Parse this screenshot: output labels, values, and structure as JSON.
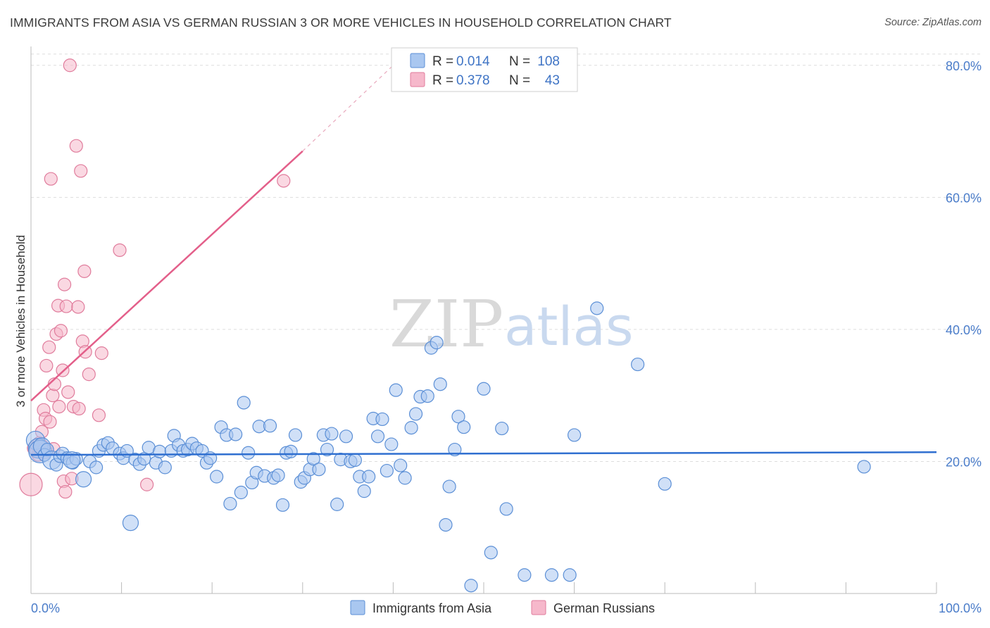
{
  "header": {
    "title": "IMMIGRANTS FROM ASIA VS GERMAN RUSSIAN 3 OR MORE VEHICLES IN HOUSEHOLD CORRELATION CHART",
    "source": "Source: ZipAtlas.com"
  },
  "legend": {
    "rows": [
      {
        "r_label": "R =",
        "r_value": "0.014",
        "n_label": "N =",
        "n_value": "108",
        "color": "#a9c7f0"
      },
      {
        "r_label": "R =",
        "r_value": "0.378",
        "n_label": "N =",
        "n_value": "43",
        "color": "#f6b8cb"
      }
    ]
  },
  "watermark": {
    "zip": "ZIP",
    "atlas": "atlas"
  },
  "colors": {
    "blue_fill": "#a9c7f0",
    "blue_stroke": "#5b8fd6",
    "blue_line": "#2f6fd0",
    "pink_fill": "#f6b8cb",
    "pink_stroke": "#e07c9c",
    "pink_line": "#e35f8a",
    "grid": "#dddddd",
    "axis": "#bbbbbb"
  },
  "chart_data": {
    "type": "scatter",
    "title": "IMMIGRANTS FROM ASIA VS GERMAN RUSSIAN 3 OR MORE VEHICLES IN HOUSEHOLD CORRELATION CHART",
    "xlabel": "",
    "ylabel": "3 or more Vehicles in Household",
    "xlim": [
      0,
      100
    ],
    "ylim": [
      0,
      82
    ],
    "x_tick_labels": [
      "0.0%",
      "100.0%"
    ],
    "y_ticks": [
      20,
      40,
      60,
      80
    ],
    "y_tick_labels": [
      "20.0%",
      "40.0%",
      "60.0%",
      "80.0%"
    ],
    "grid": true,
    "series": [
      {
        "name": "Immigrants from Asia",
        "r": 0.014,
        "n": 108,
        "trend": {
          "x0": 0,
          "y0": 21.0,
          "x1": 100,
          "y1": 21.4
        },
        "points": [
          [
            0.5,
            23.2
          ],
          [
            0.8,
            22.0
          ],
          [
            1.0,
            21.5
          ],
          [
            1.2,
            22.3
          ],
          [
            1.5,
            21.0
          ],
          [
            1.8,
            21.8
          ],
          [
            2.3,
            20.2
          ],
          [
            2.8,
            19.5
          ],
          [
            3.2,
            20.8
          ],
          [
            3.5,
            21.2
          ],
          [
            4.0,
            20.5
          ],
          [
            4.6,
            19.8
          ],
          [
            5.0,
            20.4
          ],
          [
            5.8,
            17.3
          ],
          [
            6.5,
            20.0
          ],
          [
            7.2,
            19.1
          ],
          [
            7.5,
            21.6
          ],
          [
            8.0,
            22.5
          ],
          [
            8.5,
            22.8
          ],
          [
            9.0,
            22.0
          ],
          [
            9.8,
            21.2
          ],
          [
            10.2,
            20.5
          ],
          [
            10.6,
            21.6
          ],
          [
            11.0,
            10.7
          ],
          [
            11.5,
            20.3
          ],
          [
            12.0,
            19.6
          ],
          [
            12.5,
            20.4
          ],
          [
            13.0,
            22.1
          ],
          [
            13.8,
            19.8
          ],
          [
            14.2,
            21.5
          ],
          [
            14.8,
            19.1
          ],
          [
            15.5,
            21.6
          ],
          [
            15.8,
            23.9
          ],
          [
            16.3,
            22.5
          ],
          [
            16.8,
            21.6
          ],
          [
            17.3,
            21.8
          ],
          [
            17.8,
            22.7
          ],
          [
            18.3,
            22.0
          ],
          [
            18.9,
            21.6
          ],
          [
            19.4,
            19.8
          ],
          [
            19.8,
            20.5
          ],
          [
            20.5,
            17.7
          ],
          [
            21.0,
            25.2
          ],
          [
            21.6,
            24.0
          ],
          [
            22.0,
            13.6
          ],
          [
            22.6,
            24.1
          ],
          [
            23.2,
            15.3
          ],
          [
            23.5,
            28.9
          ],
          [
            24.0,
            21.3
          ],
          [
            24.4,
            16.8
          ],
          [
            24.9,
            18.3
          ],
          [
            25.2,
            25.3
          ],
          [
            25.8,
            17.8
          ],
          [
            26.4,
            25.4
          ],
          [
            26.8,
            17.5
          ],
          [
            27.3,
            17.9
          ],
          [
            27.8,
            13.4
          ],
          [
            28.2,
            21.3
          ],
          [
            28.7,
            21.5
          ],
          [
            29.2,
            24.0
          ],
          [
            29.8,
            16.9
          ],
          [
            30.2,
            17.5
          ],
          [
            30.8,
            18.8
          ],
          [
            31.2,
            20.4
          ],
          [
            31.8,
            18.8
          ],
          [
            32.3,
            24.0
          ],
          [
            32.7,
            21.8
          ],
          [
            33.2,
            24.2
          ],
          [
            33.8,
            13.5
          ],
          [
            34.2,
            20.3
          ],
          [
            34.8,
            23.8
          ],
          [
            35.3,
            20.0
          ],
          [
            35.8,
            20.2
          ],
          [
            36.3,
            17.7
          ],
          [
            36.8,
            15.5
          ],
          [
            37.3,
            17.7
          ],
          [
            37.8,
            26.5
          ],
          [
            38.3,
            23.8
          ],
          [
            38.8,
            26.4
          ],
          [
            39.3,
            18.6
          ],
          [
            39.8,
            22.6
          ],
          [
            40.3,
            30.8
          ],
          [
            40.8,
            19.4
          ],
          [
            41.3,
            17.5
          ],
          [
            42.0,
            25.1
          ],
          [
            42.5,
            27.2
          ],
          [
            43.0,
            29.8
          ],
          [
            43.8,
            29.9
          ],
          [
            44.2,
            37.2
          ],
          [
            44.8,
            38.0
          ],
          [
            45.2,
            31.7
          ],
          [
            45.8,
            10.4
          ],
          [
            46.2,
            16.2
          ],
          [
            46.8,
            21.8
          ],
          [
            47.2,
            26.8
          ],
          [
            47.8,
            25.2
          ],
          [
            48.6,
            1.2
          ],
          [
            50.0,
            31.0
          ],
          [
            50.8,
            6.2
          ],
          [
            52.0,
            25.0
          ],
          [
            52.5,
            12.8
          ],
          [
            54.5,
            2.8
          ],
          [
            57.5,
            2.8
          ],
          [
            59.5,
            2.8
          ],
          [
            60.0,
            24.0
          ],
          [
            62.5,
            43.2
          ],
          [
            67.0,
            34.7
          ],
          [
            70.0,
            16.6
          ],
          [
            92.0,
            19.2
          ],
          [
            4.5,
            20.2
          ]
        ]
      },
      {
        "name": "German Russians",
        "r": 0.378,
        "n": 43,
        "trend": {
          "x0": 0,
          "y0": 29.2,
          "x1": 30,
          "y1": 67.0
        },
        "trend_dashed_to": {
          "x": 40,
          "y": 80.0
        },
        "points": [
          [
            0.0,
            16.5
          ],
          [
            0.3,
            22.0
          ],
          [
            0.6,
            21.5
          ],
          [
            0.9,
            22.8
          ],
          [
            1.2,
            24.5
          ],
          [
            1.4,
            27.8
          ],
          [
            1.6,
            26.5
          ],
          [
            1.7,
            34.5
          ],
          [
            2.0,
            37.3
          ],
          [
            2.1,
            26.0
          ],
          [
            2.2,
            62.8
          ],
          [
            2.4,
            30.0
          ],
          [
            2.6,
            31.7
          ],
          [
            2.8,
            39.3
          ],
          [
            3.0,
            43.6
          ],
          [
            3.1,
            28.3
          ],
          [
            3.3,
            39.8
          ],
          [
            3.5,
            33.8
          ],
          [
            3.6,
            17.0
          ],
          [
            3.7,
            46.8
          ],
          [
            3.8,
            15.4
          ],
          [
            3.9,
            43.5
          ],
          [
            4.1,
            30.5
          ],
          [
            4.3,
            80.0
          ],
          [
            4.5,
            17.4
          ],
          [
            4.7,
            28.3
          ],
          [
            5.0,
            67.8
          ],
          [
            5.2,
            43.4
          ],
          [
            5.3,
            28.0
          ],
          [
            5.5,
            64.0
          ],
          [
            5.7,
            38.2
          ],
          [
            5.9,
            48.8
          ],
          [
            6.0,
            36.6
          ],
          [
            6.4,
            33.2
          ],
          [
            7.5,
            27.0
          ],
          [
            7.8,
            36.4
          ],
          [
            9.8,
            52.0
          ],
          [
            12.8,
            16.5
          ],
          [
            27.9,
            62.5
          ],
          [
            0.8,
            21.0
          ],
          [
            1.1,
            22.1
          ],
          [
            1.5,
            21.6
          ],
          [
            2.5,
            21.9
          ]
        ]
      }
    ]
  },
  "bottom_legend": {
    "items": [
      {
        "label": "Immigrants from Asia",
        "color": "#a9c7f0"
      },
      {
        "label": "German Russians",
        "color": "#f6b8cb"
      }
    ]
  }
}
